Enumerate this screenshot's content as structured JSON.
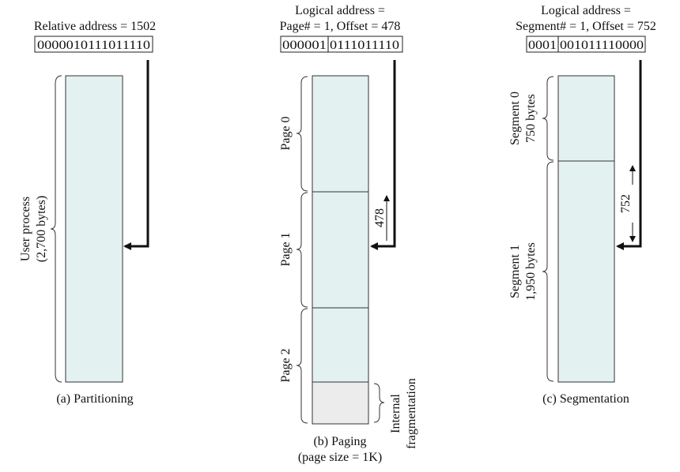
{
  "partitioning": {
    "address_label": "Relative address = 1502",
    "bits": "0000010111011110",
    "side_label_line1": "User process",
    "side_label_line2": "(2,700 bytes)",
    "caption": "(a) Partitioning"
  },
  "paging": {
    "title_line1": "Logical address =",
    "title_line2": "Page# = 1, Offset = 478",
    "bits_page": "000001",
    "bits_offset": "0111011110",
    "pages": [
      "Page 0",
      "Page 1",
      "Page 2"
    ],
    "offset_label": "478",
    "frag_line1": "Internal",
    "frag_line2": "fragmentation",
    "caption_line1": "(b) Paging",
    "caption_line2": "(page size = 1K)"
  },
  "segmentation": {
    "title_line1": "Logical address =",
    "title_line2": "Segment# = 1, Offset = 752",
    "bits_segment": "0001",
    "bits_offset": "001011110000",
    "segment0_line1": "Segment 0",
    "segment0_line2": "750 bytes",
    "segment1_line1": "Segment 1",
    "segment1_line2": "1,950 bytes",
    "offset_label": "752",
    "caption": "(c) Segmentation"
  },
  "colors": {
    "memory_fill": "#e4f1f1",
    "fragment_fill": "#ececec"
  }
}
